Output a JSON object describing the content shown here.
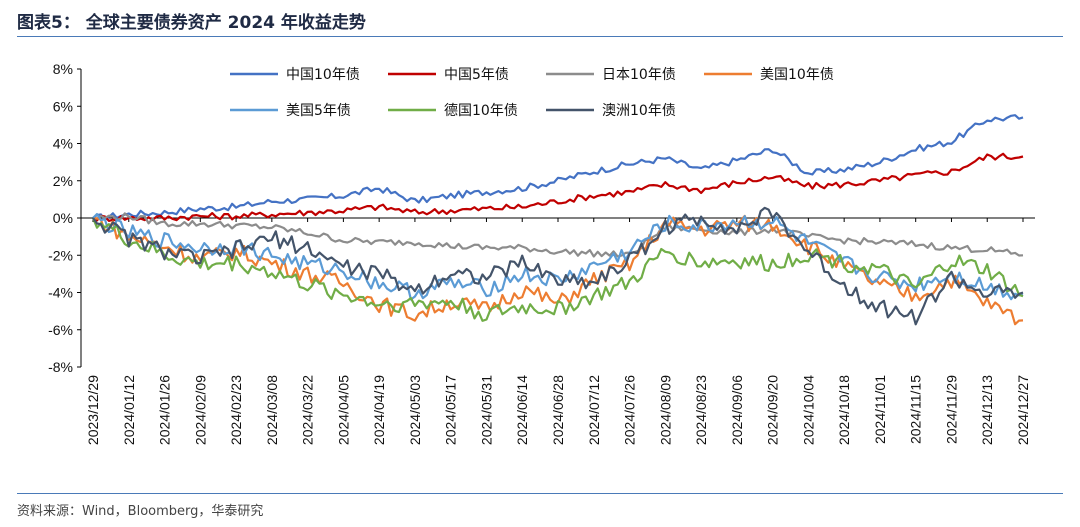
{
  "figure": {
    "title": "图表5：  全球主要债券资产 2024 年收益走势",
    "source": "资料来源：Wind，Bloomberg，华泰研究"
  },
  "chart_data": {
    "type": "line",
    "y_unit": "%",
    "ylim": [
      -8,
      8
    ],
    "y_ticks": [
      8,
      6,
      4,
      2,
      0,
      -2,
      -4,
      -6,
      -8
    ],
    "y_tick_labels": [
      "8%",
      "6%",
      "4%",
      "2%",
      "0%",
      "-2%",
      "-4%",
      "-6%",
      "-8%"
    ],
    "x_tick_labels": [
      "2023/12/29",
      "2024/01/12",
      "2024/01/26",
      "2024/02/09",
      "2024/02/23",
      "2024/03/08",
      "2024/03/22",
      "2024/04/05",
      "2024/04/19",
      "2024/05/03",
      "2024/05/17",
      "2024/05/31",
      "2024/06/14",
      "2024/06/28",
      "2024/07/12",
      "2024/07/26",
      "2024/08/09",
      "2024/08/23",
      "2024/09/06",
      "2024/09/20",
      "2024/10/04",
      "2024/10/18",
      "2024/11/01",
      "2024/11/15",
      "2024/11/29",
      "2024/12/13",
      "2024/12/27"
    ],
    "legend_position": "top",
    "grid": false,
    "series": [
      {
        "name": "中国10年债",
        "color": "#4472c4",
        "values": [
          0,
          0.2,
          0.3,
          0.5,
          0.6,
          0.9,
          1.0,
          1.2,
          1.6,
          0.9,
          1.2,
          1.4,
          1.6,
          2.0,
          2.5,
          2.9,
          3.2,
          2.6,
          3.1,
          3.7,
          2.4,
          2.6,
          3.0,
          3.7,
          4.1,
          5.3,
          5.4
        ]
      },
      {
        "name": "中国5年债",
        "color": "#c00000",
        "values": [
          0,
          0.0,
          0.0,
          0.1,
          0.1,
          0.2,
          0.3,
          0.4,
          0.6,
          0.3,
          0.4,
          0.5,
          0.6,
          0.9,
          1.2,
          1.4,
          1.8,
          1.5,
          1.9,
          2.2,
          1.7,
          1.8,
          2.0,
          2.3,
          2.5,
          3.3,
          3.3
        ]
      },
      {
        "name": "日本10年债",
        "color": "#8c8c8c",
        "values": [
          0,
          0.1,
          -0.3,
          -0.3,
          -0.4,
          -0.5,
          -0.8,
          -1.2,
          -1.3,
          -1.3,
          -1.5,
          -1.6,
          -1.6,
          -1.8,
          -1.9,
          -2.0,
          -0.5,
          -0.6,
          -0.8,
          -0.6,
          -1.0,
          -1.2,
          -1.3,
          -1.4,
          -1.6,
          -1.7,
          -2.0
        ]
      },
      {
        "name": "美国10年债",
        "color": "#ed7d31",
        "values": [
          0,
          -1.0,
          -1.5,
          -2.2,
          -1.8,
          -2.4,
          -3.0,
          -3.5,
          -4.6,
          -5.2,
          -4.5,
          -4.9,
          -3.8,
          -4.6,
          -3.3,
          -2.5,
          -0.3,
          -0.6,
          -0.3,
          -0.3,
          -1.5,
          -2.6,
          -3.6,
          -4.2,
          -3.3,
          -4.6,
          -5.5
        ]
      },
      {
        "name": "美国5年债",
        "color": "#5b9bd5",
        "values": [
          0,
          -0.8,
          -1.2,
          -1.6,
          -1.5,
          -2.0,
          -2.5,
          -2.8,
          -3.5,
          -4.0,
          -3.5,
          -3.8,
          -3.0,
          -3.4,
          -2.6,
          -1.8,
          -0.3,
          -0.5,
          -0.2,
          -0.2,
          -1.4,
          -2.4,
          -3.2,
          -3.6,
          -3.0,
          -3.7,
          -4.1
        ]
      },
      {
        "name": "德国10年债",
        "color": "#70ad47",
        "values": [
          0,
          -1.2,
          -2.0,
          -2.5,
          -2.4,
          -2.9,
          -3.6,
          -4.1,
          -4.6,
          -4.6,
          -4.5,
          -5.2,
          -4.8,
          -4.9,
          -4.2,
          -3.5,
          -1.8,
          -2.4,
          -2.3,
          -2.5,
          -1.9,
          -2.4,
          -2.8,
          -3.8,
          -2.3,
          -2.8,
          -4.2
        ]
      },
      {
        "name": "澳洲10年债",
        "color": "#44546a",
        "values": [
          0,
          -1.1,
          -1.8,
          -2.2,
          -1.7,
          -1.1,
          -1.6,
          -2.6,
          -3.0,
          -3.9,
          -2.9,
          -3.2,
          -2.4,
          -3.3,
          -3.4,
          -2.3,
          -0.5,
          0.0,
          -0.6,
          0.3,
          -1.8,
          -3.6,
          -4.8,
          -5.3,
          -3.2,
          -4.1,
          -4.0
        ]
      }
    ]
  }
}
